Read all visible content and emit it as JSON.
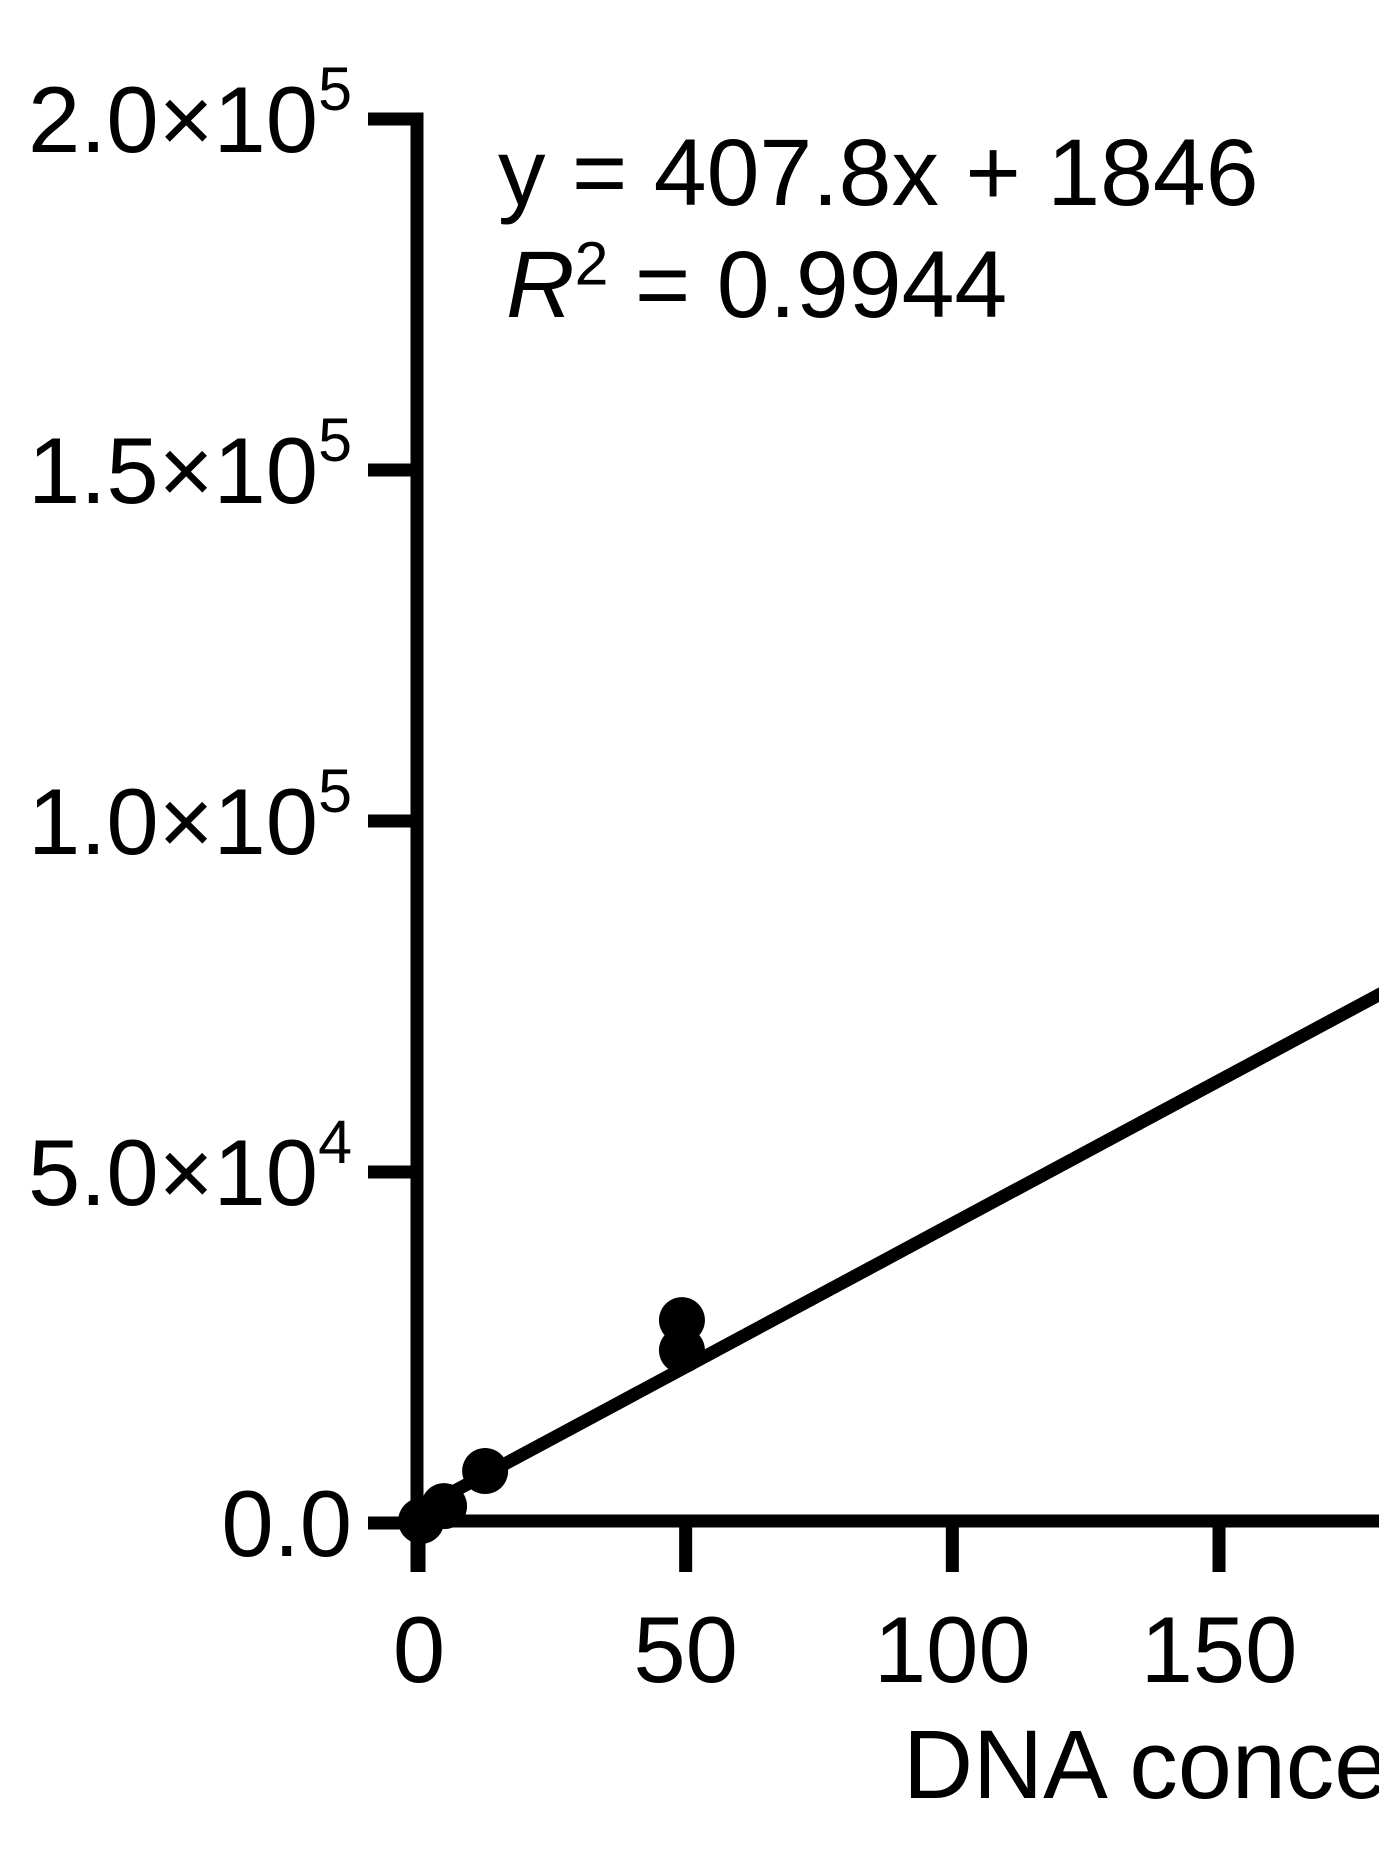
{
  "figure": {
    "background": "#ffffff",
    "ink_color": "#000000",
    "annotation": {
      "equation": "y = 407.8x + 1846",
      "r2_base": "R",
      "r2_exponent": "2",
      "r2_rest": " = 0.9944"
    },
    "x_axis_label_visible": "DNA conce"
  },
  "chart_data": {
    "type": "scatter",
    "title": "",
    "xlabel": "DNA conce",
    "ylabel": "",
    "xlim": [
      0,
      181
    ],
    "ylim": [
      0,
      200000
    ],
    "grid": false,
    "legend": null,
    "x_ticks": [
      {
        "value": 0,
        "label": "0"
      },
      {
        "value": 50,
        "label": "50"
      },
      {
        "value": 100,
        "label": "100"
      },
      {
        "value": 150,
        "label": "150"
      }
    ],
    "y_ticks": [
      {
        "value": 0,
        "label": "0.0"
      },
      {
        "value": 50000,
        "label": "5.0×10^4"
      },
      {
        "value": 100000,
        "label": "1.0×10^5"
      },
      {
        "value": 150000,
        "label": "1.5×10^5"
      },
      {
        "value": 200000,
        "label": "2.0×10^5"
      }
    ],
    "points": [
      {
        "x": 0.4,
        "y": 300
      },
      {
        "x": 4.7,
        "y": 2400
      },
      {
        "x": 12.4,
        "y": 7400
      },
      {
        "x": 49.3,
        "y": 24600
      },
      {
        "x": 49.3,
        "y": 28900
      }
    ],
    "fit_line": {
      "equation": "y = 407.8x + 1846",
      "slope": 407.8,
      "intercept": 1846,
      "r_squared": 0.9944,
      "x_start": 0,
      "x_end": 181
    }
  }
}
